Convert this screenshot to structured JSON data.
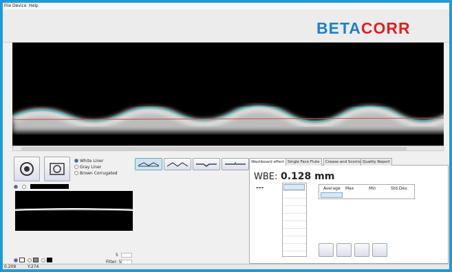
{
  "menu": [
    "File",
    "Device",
    "Help"
  ],
  "logo": {
    "part1": "BETA",
    "part2": "CORR"
  },
  "liner_options": [
    "White Liner",
    "Gray Liner",
    "Brown Corrugated"
  ],
  "tabs": [
    "Washboard effect",
    "Single Face Flute",
    "Crease and Scoring",
    "Quality Report"
  ],
  "wbe": {
    "label": "WBE:",
    "value": "0.128 mm",
    "placeholder": "---"
  },
  "stats_table": {
    "headers": [
      "Average",
      "Max",
      "Min",
      "Std.Dev."
    ]
  },
  "controls": {
    "count": "5",
    "filter": "Filter: 5"
  },
  "status": {
    "x": "0.209",
    "y": "Y:274"
  }
}
